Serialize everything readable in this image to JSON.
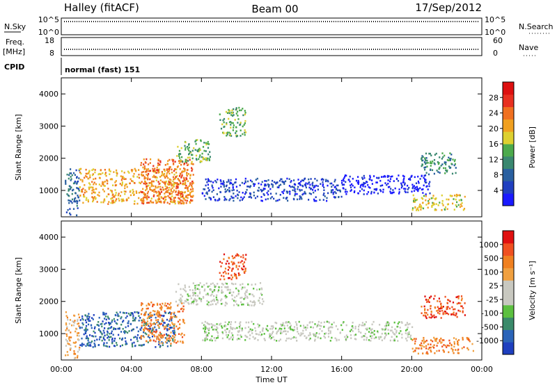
{
  "header": {
    "station": "Halley (fitACF)",
    "beam": "Beam 00",
    "date": "17/Sep/2012"
  },
  "top_panels": {
    "sky_label": "N.Sky",
    "search_label": "N.Search",
    "sky_ticks": [
      "10^5",
      "10^0"
    ],
    "search_ticks": [
      "10^5",
      "10^0"
    ],
    "freq_label_1": "Freq.",
    "freq_label_2": "[MHz]",
    "freq_ticks": [
      "18",
      "8"
    ],
    "nave_label": "Nave",
    "nave_ticks": [
      "60",
      "0"
    ],
    "cpid_label": "CPID",
    "cpid_value": "normal (fast) 151"
  },
  "chart_data": [
    {
      "type": "heatmap",
      "title": "",
      "xlabel": "Time UT",
      "ylabel": "Slant Range [km]",
      "x_ticks": [
        "00:00",
        "04:00",
        "08:00",
        "12:00",
        "16:00",
        "20:00",
        "00:00"
      ],
      "y_ticks": [
        1000,
        2000,
        3000,
        4000
      ],
      "xlim_hours": [
        0,
        24
      ],
      "ylim_km": [
        180,
        4500
      ],
      "colorbar": {
        "label": "Power [dB]",
        "ticks": [
          "4",
          "8",
          "12",
          "16",
          "20",
          "24",
          "28"
        ],
        "colors": [
          "#1a1aff",
          "#2040c0",
          "#2a60a0",
          "#3a8870",
          "#4caa4c",
          "#ddd030",
          "#f0a020",
          "#f07020",
          "#e83020",
          "#dd1010"
        ]
      },
      "regions": [
        {
          "t0": 0.2,
          "t1": 1.0,
          "r0": 250,
          "r1": 1700,
          "level": 2
        },
        {
          "t0": 1.0,
          "t1": 7.5,
          "r0": 600,
          "r1": 1700,
          "level": 6
        },
        {
          "t0": 4.5,
          "t1": 7.5,
          "r0": 600,
          "r1": 2000,
          "level": 7
        },
        {
          "t0": 6.5,
          "t1": 8.5,
          "r0": 1900,
          "r1": 2600,
          "level": 4
        },
        {
          "t0": 9.0,
          "t1": 10.5,
          "r0": 2700,
          "r1": 3600,
          "level": 4
        },
        {
          "t0": 8.0,
          "t1": 16.0,
          "r0": 700,
          "r1": 1400,
          "level": 1
        },
        {
          "t0": 16.0,
          "t1": 21.0,
          "r0": 900,
          "r1": 1500,
          "level": 0
        },
        {
          "t0": 20.0,
          "t1": 23.0,
          "r0": 400,
          "r1": 900,
          "level": 5
        },
        {
          "t0": 20.5,
          "t1": 22.5,
          "r0": 1500,
          "r1": 2200,
          "level": 3
        }
      ]
    },
    {
      "type": "heatmap",
      "title": "",
      "xlabel": "Time UT",
      "ylabel": "Slant Range [km]",
      "x_ticks": [
        "00:00",
        "04:00",
        "08:00",
        "12:00",
        "16:00",
        "20:00",
        "00:00"
      ],
      "y_ticks": [
        1000,
        2000,
        3000,
        4000
      ],
      "xlim_hours": [
        0,
        24
      ],
      "ylim_km": [
        180,
        4500
      ],
      "colorbar": {
        "label": "Velocity [m s⁻¹]",
        "ticks": [
          "1000",
          "500",
          "100",
          "25",
          "-25",
          "-100",
          "-500",
          "-1000"
        ],
        "colors": [
          "#1e3fbf",
          "#2b64b8",
          "#3a8a6a",
          "#5cc040",
          "#c8c8c0",
          "#c8c8c0",
          "#f0a040",
          "#f08020",
          "#f05020",
          "#e01010"
        ]
      },
      "regions": [
        {
          "t0": 0.2,
          "t1": 1.0,
          "r0": 250,
          "r1": 1700,
          "level": 6
        },
        {
          "t0": 1.0,
          "t1": 6.5,
          "r0": 600,
          "r1": 1700,
          "level": 1
        },
        {
          "t0": 4.5,
          "t1": 7.0,
          "r0": 700,
          "r1": 2000,
          "level": 7
        },
        {
          "t0": 6.5,
          "t1": 11.5,
          "r0": 1900,
          "r1": 2600,
          "level": 4
        },
        {
          "t0": 9.0,
          "t1": 10.5,
          "r0": 2700,
          "r1": 3500,
          "level": 8
        },
        {
          "t0": 8.0,
          "t1": 20.0,
          "r0": 800,
          "r1": 1400,
          "level": 4
        },
        {
          "t0": 20.5,
          "t1": 23.0,
          "r0": 1500,
          "r1": 2200,
          "level": 8
        },
        {
          "t0": 20.0,
          "t1": 23.5,
          "r0": 400,
          "r1": 900,
          "level": 7
        }
      ]
    }
  ]
}
